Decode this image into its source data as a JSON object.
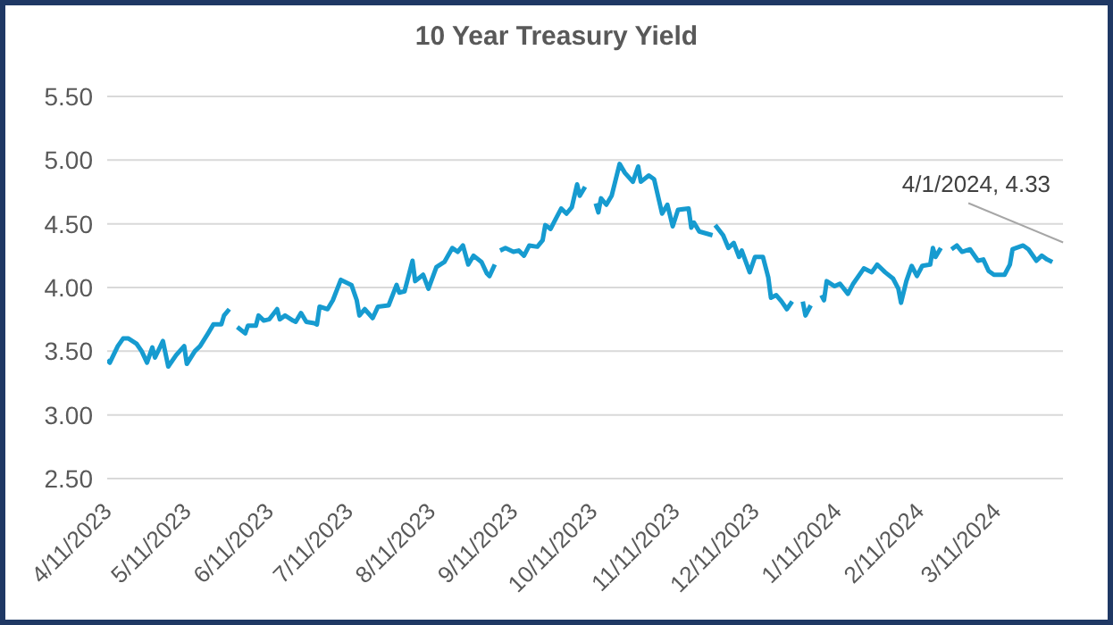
{
  "chart_data": {
    "type": "line",
    "title": "10 Year Treasury Yield",
    "x": [
      "2023-04-11",
      "2023-04-12",
      "2023-04-15",
      "2023-04-17",
      "2023-04-19",
      "2023-04-22",
      "2023-04-24",
      "2023-04-26",
      "2023-04-28",
      "2023-04-29",
      "2023-05-02",
      "2023-05-04",
      "2023-05-07",
      "2023-05-10",
      "2023-05-11",
      "2023-05-14",
      "2023-05-16",
      "2023-05-19",
      "2023-05-21",
      "2023-05-24",
      "2023-05-25",
      "2023-05-27",
      "2023-05-28",
      "2023-05-30",
      "2023-06-02",
      "2023-06-03",
      "2023-06-06",
      "2023-06-07",
      "2023-06-09",
      "2023-06-11",
      "2023-06-14",
      "2023-06-15",
      "2023-06-17",
      "2023-06-20",
      "2023-06-21",
      "2023-06-23",
      "2023-06-25",
      "2023-06-28",
      "2023-06-29",
      "2023-06-30",
      "2023-07-03",
      "2023-07-05",
      "2023-07-08",
      "2023-07-12",
      "2023-07-14",
      "2023-07-15",
      "2023-07-17",
      "2023-07-20",
      "2023-07-22",
      "2023-07-26",
      "2023-07-29",
      "2023-07-30",
      "2023-08-01",
      "2023-08-04",
      "2023-08-05",
      "2023-08-08",
      "2023-08-10",
      "2023-08-13",
      "2023-08-16",
      "2023-08-19",
      "2023-08-21",
      "2023-08-23",
      "2023-08-25",
      "2023-08-27",
      "2023-08-30",
      "2023-09-01",
      "2023-09-02",
      "2023-09-04",
      "2023-09-05",
      "2023-09-06",
      "2023-09-08",
      "2023-09-11",
      "2023-09-13",
      "2023-09-15",
      "2023-09-17",
      "2023-09-20",
      "2023-09-22",
      "2023-09-23",
      "2023-09-25",
      "2023-09-27",
      "2023-09-29",
      "2023-10-01",
      "2023-10-03",
      "2023-10-05",
      "2023-10-06",
      "2023-10-08",
      "2023-10-10",
      "2023-10-12",
      "2023-10-13",
      "2023-10-14",
      "2023-10-16",
      "2023-10-18",
      "2023-10-21",
      "2023-10-23",
      "2023-10-26",
      "2023-10-28",
      "2023-10-29",
      "2023-11-01",
      "2023-11-03",
      "2023-11-06",
      "2023-11-08",
      "2023-11-10",
      "2023-11-12",
      "2023-11-16",
      "2023-11-17",
      "2023-11-18",
      "2023-11-20",
      "2023-11-25",
      "2023-11-25T12:00",
      "2023-11-26",
      "2023-11-29",
      "2023-12-01",
      "2023-12-03",
      "2023-12-05",
      "2023-12-06",
      "2023-12-09",
      "2023-12-11",
      "2023-12-14",
      "2023-12-16",
      "2023-12-17",
      "2023-12-19",
      "2023-12-21",
      "2023-12-23",
      "2023-12-25",
      "2023-12-27",
      "2023-12-29",
      "2023-12-30",
      "2024-01-01",
      "2024-01-03",
      "2024-01-05",
      "2024-01-06",
      "2024-01-07",
      "2024-01-10",
      "2024-01-12",
      "2024-01-15",
      "2024-01-17",
      "2024-01-21",
      "2024-01-24",
      "2024-01-26",
      "2024-01-29",
      "2024-02-01",
      "2024-02-03",
      "2024-02-04",
      "2024-02-06",
      "2024-02-08",
      "2024-02-10",
      "2024-02-12",
      "2024-02-15",
      "2024-02-16",
      "2024-02-17",
      "2024-02-19",
      "2024-02-21",
      "2024-02-23",
      "2024-02-25",
      "2024-02-27",
      "2024-03-01",
      "2024-03-04",
      "2024-03-06",
      "2024-03-08",
      "2024-03-10",
      "2024-03-14",
      "2024-03-16",
      "2024-03-17",
      "2024-03-21",
      "2024-03-23",
      "2024-03-26",
      "2024-03-28",
      "2024-03-30",
      "2024-04-01"
    ],
    "series": [
      {
        "color": "#169bd0",
        "values": [
          3.43,
          3.41,
          3.54,
          3.6,
          3.6,
          3.56,
          3.5,
          3.41,
          3.53,
          3.45,
          3.58,
          3.38,
          3.47,
          3.54,
          3.4,
          3.5,
          3.54,
          3.64,
          3.71,
          3.71,
          3.78,
          3.83,
          null,
          3.69,
          3.64,
          3.7,
          3.7,
          3.78,
          3.74,
          3.75,
          3.83,
          3.75,
          3.78,
          3.74,
          3.73,
          3.8,
          3.73,
          3.72,
          3.71,
          3.85,
          3.83,
          3.9,
          4.06,
          4.02,
          3.9,
          3.78,
          3.83,
          3.76,
          3.85,
          3.86,
          4.02,
          3.96,
          3.97,
          4.21,
          4.05,
          4.1,
          3.99,
          4.16,
          4.2,
          4.31,
          4.28,
          4.33,
          4.18,
          4.25,
          4.2,
          4.11,
          4.09,
          4.18,
          null,
          4.29,
          4.31,
          4.28,
          4.29,
          4.25,
          4.33,
          4.32,
          4.37,
          4.49,
          4.46,
          4.54,
          4.62,
          4.58,
          4.63,
          4.81,
          4.72,
          4.79,
          null,
          4.66,
          4.59,
          4.7,
          4.65,
          4.72,
          4.97,
          4.9,
          4.83,
          4.95,
          4.83,
          4.88,
          4.85,
          4.58,
          4.65,
          4.48,
          4.61,
          4.62,
          4.47,
          4.51,
          4.44,
          4.41,
          null,
          4.49,
          4.41,
          4.31,
          4.35,
          4.24,
          4.29,
          4.12,
          4.24,
          4.24,
          4.08,
          3.92,
          3.94,
          3.89,
          3.83,
          3.89,
          null,
          3.89,
          3.78,
          3.86,
          null,
          3.94,
          3.9,
          4.05,
          4.01,
          4.03,
          3.95,
          4.03,
          4.15,
          4.12,
          4.18,
          4.12,
          4.07,
          3.99,
          3.88,
          4.05,
          4.17,
          4.09,
          4.17,
          4.18,
          4.31,
          4.24,
          4.31,
          null,
          4.3,
          4.33,
          4.28,
          4.3,
          4.21,
          4.22,
          4.13,
          4.1,
          4.1,
          4.18,
          4.3,
          4.33,
          4.3,
          4.21,
          4.25,
          4.22,
          4.2
        ]
      }
    ],
    "xlim": [
      "2023-04-11",
      "2024-04-05"
    ],
    "xticks": [
      {
        "value": "2023-04-11",
        "label": "4/11/2023"
      },
      {
        "value": "2023-05-11",
        "label": "5/11/2023"
      },
      {
        "value": "2023-06-11",
        "label": "6/11/2023"
      },
      {
        "value": "2023-07-11",
        "label": "7/11/2023"
      },
      {
        "value": "2023-08-11",
        "label": "8/11/2023"
      },
      {
        "value": "2023-09-11",
        "label": "9/11/2023"
      },
      {
        "value": "2023-10-11",
        "label": "10/11/2023"
      },
      {
        "value": "2023-11-11",
        "label": "11/11/2023"
      },
      {
        "value": "2023-12-11",
        "label": "12/11/2023"
      },
      {
        "value": "2024-01-11",
        "label": "1/11/2024"
      },
      {
        "value": "2024-02-11",
        "label": "2/11/2024"
      },
      {
        "value": "2024-03-11",
        "label": "3/11/2024"
      }
    ],
    "ylim": [
      2.5,
      5.5
    ],
    "yticks": [
      {
        "value": 2.5,
        "label": "2.50"
      },
      {
        "value": 3,
        "label": "3.00"
      },
      {
        "value": 3.5,
        "label": "3.50"
      },
      {
        "value": 4,
        "label": "4.00"
      },
      {
        "value": 4.5,
        "label": "4.50"
      },
      {
        "value": 5,
        "label": "5.00"
      },
      {
        "value": 5.5,
        "label": "5.50"
      }
    ],
    "grid": "y",
    "marker": "none",
    "line_style": "solid",
    "annotations": [
      "4/1/2024, 4.33"
    ]
  }
}
